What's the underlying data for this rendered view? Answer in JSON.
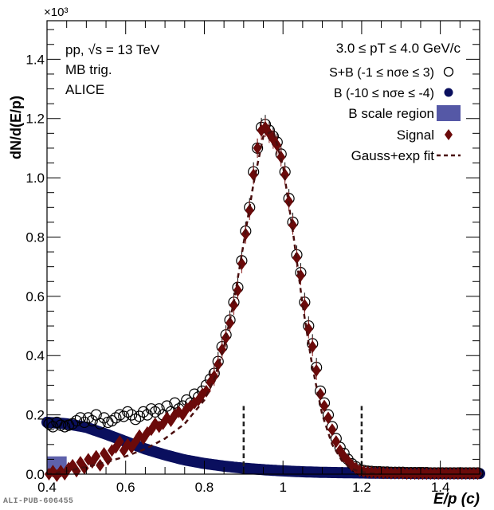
{
  "chart_data": {
    "type": "scatter",
    "title": "",
    "xlabel": "E/p (c)",
    "ylabel": "dN/d(E/p)",
    "y_multiplier": "×10³",
    "xlim": [
      0.4,
      1.5
    ],
    "ylim": [
      0.0,
      1.53
    ],
    "x_ticks": [
      0.4,
      0.6,
      0.8,
      1.0,
      1.2,
      1.4
    ],
    "x_tick_labels": [
      "0.4",
      "0.6",
      "0.8",
      "1",
      "1.2",
      "1.4"
    ],
    "y_ticks": [
      0.0,
      0.2,
      0.4,
      0.6,
      0.8,
      1.0,
      1.2,
      1.4
    ],
    "y_tick_labels": [
      "0.0",
      "0.2",
      "0.4",
      "0.6",
      "0.8",
      "1.0",
      "1.2",
      "1.4"
    ],
    "grid": false,
    "annotations": {
      "system": "pp, √s = 13 TeV",
      "trigger": "MB trig.",
      "experiment": "ALICE",
      "pt_range": "3.0 ≤ pT ≤ 4.0 GeV/c"
    },
    "legend_position": "top-right",
    "legend": [
      {
        "label": "S+B (-1 ≤ nσe ≤ 3)",
        "marker": "open-circle",
        "color": "#000000"
      },
      {
        "label": "B (-10 ≤ nσe ≤ -4)",
        "marker": "filled-circle",
        "color": "#0a0f5e"
      },
      {
        "label": "B scale region",
        "marker": "box",
        "color": "#5558a6"
      },
      {
        "label": "Signal",
        "marker": "diamond",
        "color": "#6b0a0a"
      },
      {
        "label": "Gauss+exp fit",
        "marker": "dashed-line",
        "color": "#4a0e0e"
      }
    ],
    "vertical_lines": [
      0.9,
      1.2
    ],
    "b_scale_region": {
      "x": [
        0.4,
        0.45
      ],
      "y": [
        0.0,
        0.06
      ]
    },
    "series": [
      {
        "name": "S+B",
        "x": [
          0.405,
          0.415,
          0.425,
          0.435,
          0.445,
          0.455,
          0.465,
          0.475,
          0.485,
          0.495,
          0.505,
          0.515,
          0.525,
          0.535,
          0.545,
          0.555,
          0.565,
          0.575,
          0.585,
          0.595,
          0.605,
          0.615,
          0.625,
          0.635,
          0.645,
          0.655,
          0.665,
          0.675,
          0.685,
          0.695,
          0.705,
          0.715,
          0.725,
          0.735,
          0.745,
          0.755,
          0.765,
          0.775,
          0.785,
          0.795,
          0.805,
          0.815,
          0.825,
          0.835,
          0.845,
          0.855,
          0.865,
          0.875,
          0.885,
          0.895,
          0.905,
          0.915,
          0.925,
          0.935,
          0.945,
          0.955,
          0.965,
          0.975,
          0.985,
          0.995,
          1.005,
          1.015,
          1.025,
          1.035,
          1.045,
          1.055,
          1.065,
          1.075,
          1.085,
          1.095,
          1.105,
          1.115,
          1.125,
          1.135,
          1.145,
          1.155,
          1.165,
          1.175,
          1.185,
          1.195,
          1.205,
          1.215,
          1.225,
          1.235,
          1.245,
          1.255,
          1.265,
          1.275,
          1.285,
          1.295,
          1.305,
          1.315,
          1.325,
          1.335,
          1.345,
          1.355,
          1.365,
          1.375,
          1.385,
          1.395,
          1.405,
          1.415,
          1.425,
          1.435,
          1.445,
          1.455,
          1.465,
          1.475,
          1.485,
          1.495
        ],
        "y": [
          0.17,
          0.16,
          0.175,
          0.165,
          0.16,
          0.165,
          0.17,
          0.18,
          0.19,
          0.175,
          0.19,
          0.18,
          0.2,
          0.17,
          0.19,
          0.175,
          0.18,
          0.19,
          0.2,
          0.195,
          0.21,
          0.2,
          0.185,
          0.195,
          0.21,
          0.2,
          0.22,
          0.21,
          0.22,
          0.2,
          0.23,
          0.21,
          0.24,
          0.22,
          0.23,
          0.25,
          0.24,
          0.27,
          0.26,
          0.28,
          0.3,
          0.32,
          0.34,
          0.38,
          0.43,
          0.47,
          0.52,
          0.58,
          0.63,
          0.72,
          0.82,
          0.9,
          1.02,
          1.1,
          1.17,
          1.18,
          1.16,
          1.14,
          1.12,
          1.08,
          1.02,
          0.93,
          0.85,
          0.74,
          0.68,
          0.58,
          0.5,
          0.44,
          0.36,
          0.28,
          0.24,
          0.2,
          0.16,
          0.12,
          0.09,
          0.07,
          0.05,
          0.035,
          0.025,
          0.015,
          0.012,
          0.01,
          0.009,
          0.008,
          0.008,
          0.007,
          0.007,
          0.006,
          0.006,
          0.006,
          0.006,
          0.005,
          0.005,
          0.005,
          0.005,
          0.005,
          0.005,
          0.004,
          0.004,
          0.004,
          0.004,
          0.004,
          0.004,
          0.004,
          0.004,
          0.004,
          0.004,
          0.004,
          0.004,
          0.004
        ]
      },
      {
        "name": "B",
        "x": [
          0.4,
          0.45,
          0.5,
          0.55,
          0.6,
          0.65,
          0.7,
          0.75,
          0.8,
          0.85,
          0.9,
          0.95,
          1.0,
          1.05,
          1.1,
          1.15,
          1.2,
          1.25,
          1.3,
          1.35,
          1.4,
          1.45,
          1.5
        ],
        "y": [
          0.175,
          0.17,
          0.158,
          0.135,
          0.11,
          0.085,
          0.065,
          0.048,
          0.036,
          0.027,
          0.02,
          0.015,
          0.011,
          0.008,
          0.006,
          0.005,
          0.004,
          0.003,
          0.003,
          0.002,
          0.002,
          0.002,
          0.002
        ]
      },
      {
        "name": "Signal",
        "x": [
          0.405,
          0.415,
          0.425,
          0.435,
          0.445,
          0.455,
          0.465,
          0.475,
          0.485,
          0.495,
          0.505,
          0.515,
          0.525,
          0.535,
          0.545,
          0.555,
          0.565,
          0.575,
          0.585,
          0.595,
          0.605,
          0.615,
          0.625,
          0.635,
          0.645,
          0.655,
          0.665,
          0.675,
          0.685,
          0.695,
          0.705,
          0.715,
          0.725,
          0.735,
          0.745,
          0.755,
          0.765,
          0.775,
          0.785,
          0.795,
          0.805,
          0.815,
          0.825,
          0.835,
          0.845,
          0.855,
          0.865,
          0.875,
          0.885,
          0.895,
          0.905,
          0.915,
          0.925,
          0.935,
          0.945,
          0.955,
          0.965,
          0.975,
          0.985,
          0.995,
          1.005,
          1.015,
          1.025,
          1.035,
          1.045,
          1.055,
          1.065,
          1.075,
          1.085,
          1.095,
          1.105,
          1.115,
          1.125,
          1.135,
          1.145,
          1.155,
          1.165,
          1.175,
          1.185,
          1.195,
          1.205,
          1.215,
          1.225,
          1.235,
          1.245,
          1.255,
          1.265,
          1.275,
          1.285,
          1.295,
          1.305,
          1.315,
          1.325,
          1.335,
          1.345,
          1.355,
          1.365,
          1.375,
          1.385,
          1.395,
          1.405,
          1.415,
          1.425,
          1.435,
          1.445,
          1.455,
          1.465,
          1.475,
          1.485,
          1.495
        ],
        "y": [
          0.0,
          0.01,
          -0.005,
          0.01,
          0.0,
          0.02,
          0.03,
          0.01,
          0.04,
          0.02,
          0.05,
          0.04,
          0.06,
          0.03,
          0.07,
          0.05,
          0.08,
          0.09,
          0.11,
          0.08,
          0.1,
          0.09,
          0.11,
          0.13,
          0.12,
          0.14,
          0.15,
          0.17,
          0.16,
          0.17,
          0.19,
          0.18,
          0.2,
          0.21,
          0.2,
          0.22,
          0.23,
          0.24,
          0.25,
          0.27,
          0.28,
          0.31,
          0.33,
          0.37,
          0.42,
          0.46,
          0.51,
          0.57,
          0.62,
          0.71,
          0.81,
          0.89,
          1.01,
          1.1,
          1.16,
          1.17,
          1.15,
          1.13,
          1.11,
          1.07,
          1.01,
          0.92,
          0.84,
          0.73,
          0.67,
          0.57,
          0.49,
          0.43,
          0.35,
          0.27,
          0.23,
          0.19,
          0.15,
          0.11,
          0.08,
          0.06,
          0.045,
          0.03,
          0.02,
          0.012,
          0.009,
          0.007,
          0.006,
          0.005,
          0.005,
          0.004,
          0.004,
          0.003,
          0.003,
          0.003,
          0.003,
          0.002,
          0.002,
          0.002,
          0.002,
          0.002,
          0.002,
          0.002,
          0.002,
          0.002,
          0.002,
          0.002,
          0.002,
          0.002,
          0.002,
          0.002,
          0.002,
          0.002,
          0.002,
          0.002
        ]
      },
      {
        "name": "Gauss+exp fit",
        "x": [
          0.4,
          0.45,
          0.5,
          0.55,
          0.6,
          0.65,
          0.7,
          0.75,
          0.8,
          0.825,
          0.85,
          0.875,
          0.9,
          0.925,
          0.95,
          0.975,
          1.0,
          1.025,
          1.05,
          1.075,
          1.1,
          1.125,
          1.15,
          1.175,
          1.2,
          1.225,
          1.25
        ],
        "y": [
          0.0,
          0.01,
          0.025,
          0.04,
          0.06,
          0.085,
          0.12,
          0.17,
          0.25,
          0.32,
          0.43,
          0.58,
          0.78,
          0.98,
          1.14,
          1.16,
          1.04,
          0.82,
          0.57,
          0.36,
          0.2,
          0.1,
          0.045,
          0.018,
          0.007,
          0.003,
          0.001
        ]
      }
    ]
  },
  "footer": {
    "watermark": "ALI-PUB-606455"
  }
}
